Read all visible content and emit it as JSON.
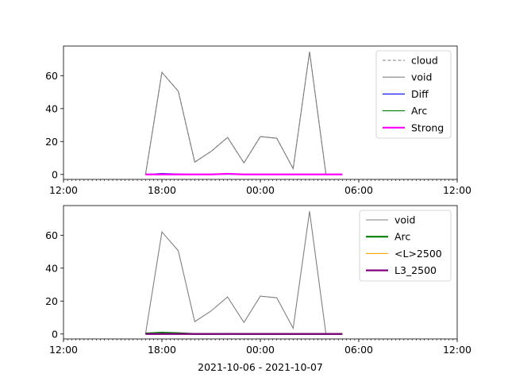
{
  "figure": {
    "xlabel": "2021-10-06 - 2021-10-07",
    "colors": {
      "void": "#808080",
      "cloud": "#808080",
      "Diff": "#0000ff",
      "Arc": "#008000",
      "Strong": "#ff00ff",
      "L_gt_2500": "#ffa500",
      "L3_2500": "#800080"
    }
  },
  "chart_data": [
    {
      "type": "line",
      "x_axis": "datetime",
      "xlim": [
        "2021-10-06 12:00",
        "2021-10-07 12:00"
      ],
      "xticks": [
        "12:00",
        "18:00",
        "00:00",
        "06:00",
        "12:00"
      ],
      "ylim": [
        -3,
        78
      ],
      "yticks": [
        "0",
        "20",
        "40",
        "60"
      ],
      "grid": false,
      "legend_position": "upper right",
      "x": [
        "2021-10-06 17:00",
        "2021-10-06 18:00",
        "2021-10-06 19:00",
        "2021-10-06 20:00",
        "2021-10-06 21:00",
        "2021-10-06 22:00",
        "2021-10-06 23:00",
        "2021-10-07 00:00",
        "2021-10-07 01:00",
        "2021-10-07 02:00",
        "2021-10-07 03:00",
        "2021-10-07 04:00",
        "2021-10-07 05:00"
      ],
      "series": [
        {
          "name": "cloud",
          "style": "dashed",
          "color": "#808080",
          "values": [
            0,
            62,
            50.5,
            7.5,
            14,
            22.5,
            7,
            23,
            22,
            3.5,
            74.5,
            0,
            0
          ]
        },
        {
          "name": "void",
          "style": "solid",
          "color": "#808080",
          "values": [
            0,
            62,
            50.5,
            7.5,
            14,
            22.5,
            7,
            23,
            22,
            3.5,
            74.5,
            0,
            0
          ]
        },
        {
          "name": "Diff",
          "style": "solid",
          "color": "#0000ff",
          "values": [
            0,
            0.6,
            0.3,
            0,
            0,
            0.2,
            0,
            0,
            0,
            0,
            0,
            0,
            0
          ]
        },
        {
          "name": "Arc",
          "style": "solid",
          "color": "#008000",
          "values": [
            0,
            0.2,
            0.1,
            0,
            0,
            0.1,
            0,
            0,
            0,
            0,
            0,
            0,
            0
          ]
        },
        {
          "name": "Strong",
          "style": "thick",
          "color": "#ff00ff",
          "values": [
            0,
            0,
            0,
            0,
            0,
            0.4,
            0,
            0,
            0,
            0,
            0,
            0,
            0
          ]
        }
      ]
    },
    {
      "type": "line",
      "x_axis": "datetime",
      "xlim": [
        "2021-10-06 12:00",
        "2021-10-07 12:00"
      ],
      "xticks": [
        "12:00",
        "18:00",
        "00:00",
        "06:00",
        "12:00"
      ],
      "ylim": [
        -3,
        78
      ],
      "yticks": [
        "0",
        "20",
        "40",
        "60"
      ],
      "xlabel": "2021-10-06 - 2021-10-07",
      "grid": false,
      "legend_position": "upper right",
      "x": [
        "2021-10-06 17:00",
        "2021-10-06 18:00",
        "2021-10-06 19:00",
        "2021-10-06 20:00",
        "2021-10-06 21:00",
        "2021-10-06 22:00",
        "2021-10-06 23:00",
        "2021-10-07 00:00",
        "2021-10-07 01:00",
        "2021-10-07 02:00",
        "2021-10-07 03:00",
        "2021-10-07 04:00",
        "2021-10-07 05:00"
      ],
      "series": [
        {
          "name": "void",
          "style": "solid",
          "color": "#808080",
          "values": [
            0,
            62,
            50.5,
            7.5,
            14,
            22.5,
            7,
            23,
            22,
            3.5,
            74.5,
            0,
            0
          ]
        },
        {
          "name": "Arc",
          "style": "thick",
          "color": "#008000",
          "values": [
            0.3,
            0.8,
            0.5,
            0,
            0,
            0.1,
            0,
            0,
            0,
            0,
            0,
            0,
            0
          ]
        },
        {
          "name": "<L>2500",
          "style": "solid",
          "color": "#ffa500",
          "values": [
            0,
            0,
            0,
            0,
            0,
            0,
            0,
            0,
            0,
            0,
            0,
            0,
            0
          ]
        },
        {
          "name": "L3_2500",
          "style": "thick",
          "color": "#800080",
          "values": [
            0,
            0,
            0,
            0,
            0,
            0,
            0,
            0,
            0,
            0,
            0,
            0,
            0
          ]
        }
      ]
    }
  ]
}
